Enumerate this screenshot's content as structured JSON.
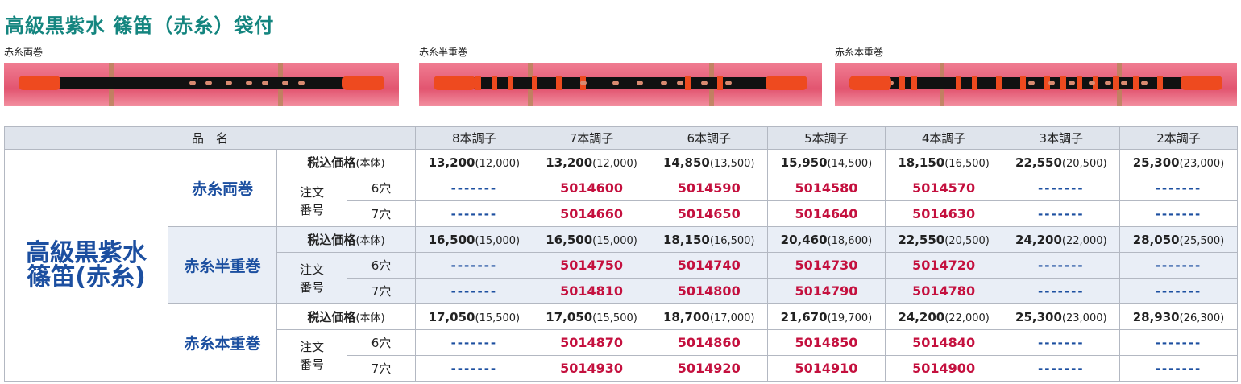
{
  "header": {
    "title": "高級黒紫水 篠笛（赤糸）袋付"
  },
  "images": [
    {
      "caption": "赤糸両巻"
    },
    {
      "caption": "赤糸半重巻"
    },
    {
      "caption": "赤糸本重巻"
    }
  ],
  "table": {
    "name_header": "品　名",
    "columns": [
      "8本調子",
      "7本調子",
      "6本調子",
      "5本調子",
      "4本調子",
      "3本調子",
      "2本調子"
    ],
    "group": [
      "高級黒紫水",
      "篠笛(赤糸)"
    ],
    "variants": [
      {
        "name": "赤糸両巻",
        "price_label": "税込価格",
        "price_note": "(本体)",
        "order_label": [
          "注文",
          "番号"
        ],
        "prices": [
          [
            "13,200",
            "(12,000)"
          ],
          [
            "13,200",
            "(12,000)"
          ],
          [
            "14,850",
            "(13,500)"
          ],
          [
            "15,950",
            "(14,500)"
          ],
          [
            "18,150",
            "(16,500)"
          ],
          [
            "22,550",
            "(20,500)"
          ],
          [
            "25,300",
            "(23,000)"
          ]
        ],
        "holes": [
          {
            "label": "6穴",
            "numbers": [
              "-------",
              "5014600",
              "5014590",
              "5014580",
              "5014570",
              "-------",
              "-------"
            ]
          },
          {
            "label": "7穴",
            "numbers": [
              "-------",
              "5014660",
              "5014650",
              "5014640",
              "5014630",
              "-------",
              "-------"
            ]
          }
        ]
      },
      {
        "name": "赤糸半重巻",
        "price_label": "税込価格",
        "price_note": "(本体)",
        "order_label": [
          "注文",
          "番号"
        ],
        "prices": [
          [
            "16,500",
            "(15,000)"
          ],
          [
            "16,500",
            "(15,000)"
          ],
          [
            "18,150",
            "(16,500)"
          ],
          [
            "20,460",
            "(18,600)"
          ],
          [
            "22,550",
            "(20,500)"
          ],
          [
            "24,200",
            "(22,000)"
          ],
          [
            "28,050",
            "(25,500)"
          ]
        ],
        "holes": [
          {
            "label": "6穴",
            "numbers": [
              "-------",
              "5014750",
              "5014740",
              "5014730",
              "5014720",
              "-------",
              "-------"
            ]
          },
          {
            "label": "7穴",
            "numbers": [
              "-------",
              "5014810",
              "5014800",
              "5014790",
              "5014780",
              "-------",
              "-------"
            ]
          }
        ]
      },
      {
        "name": "赤糸本重巻",
        "price_label": "税込価格",
        "price_note": "(本体)",
        "order_label": [
          "注文",
          "番号"
        ],
        "prices": [
          [
            "17,050",
            "(15,500)"
          ],
          [
            "17,050",
            "(15,500)"
          ],
          [
            "18,700",
            "(17,000)"
          ],
          [
            "21,670",
            "(19,700)"
          ],
          [
            "24,200",
            "(22,000)"
          ],
          [
            "25,300",
            "(23,000)"
          ],
          [
            "28,930",
            "(26,300)"
          ]
        ],
        "holes": [
          {
            "label": "6穴",
            "numbers": [
              "-------",
              "5014870",
              "5014860",
              "5014850",
              "5014840",
              "-------",
              "-------"
            ]
          },
          {
            "label": "7穴",
            "numbers": [
              "-------",
              "5014930",
              "5014920",
              "5014910",
              "5014900",
              "-------",
              "-------"
            ]
          }
        ]
      }
    ]
  }
}
